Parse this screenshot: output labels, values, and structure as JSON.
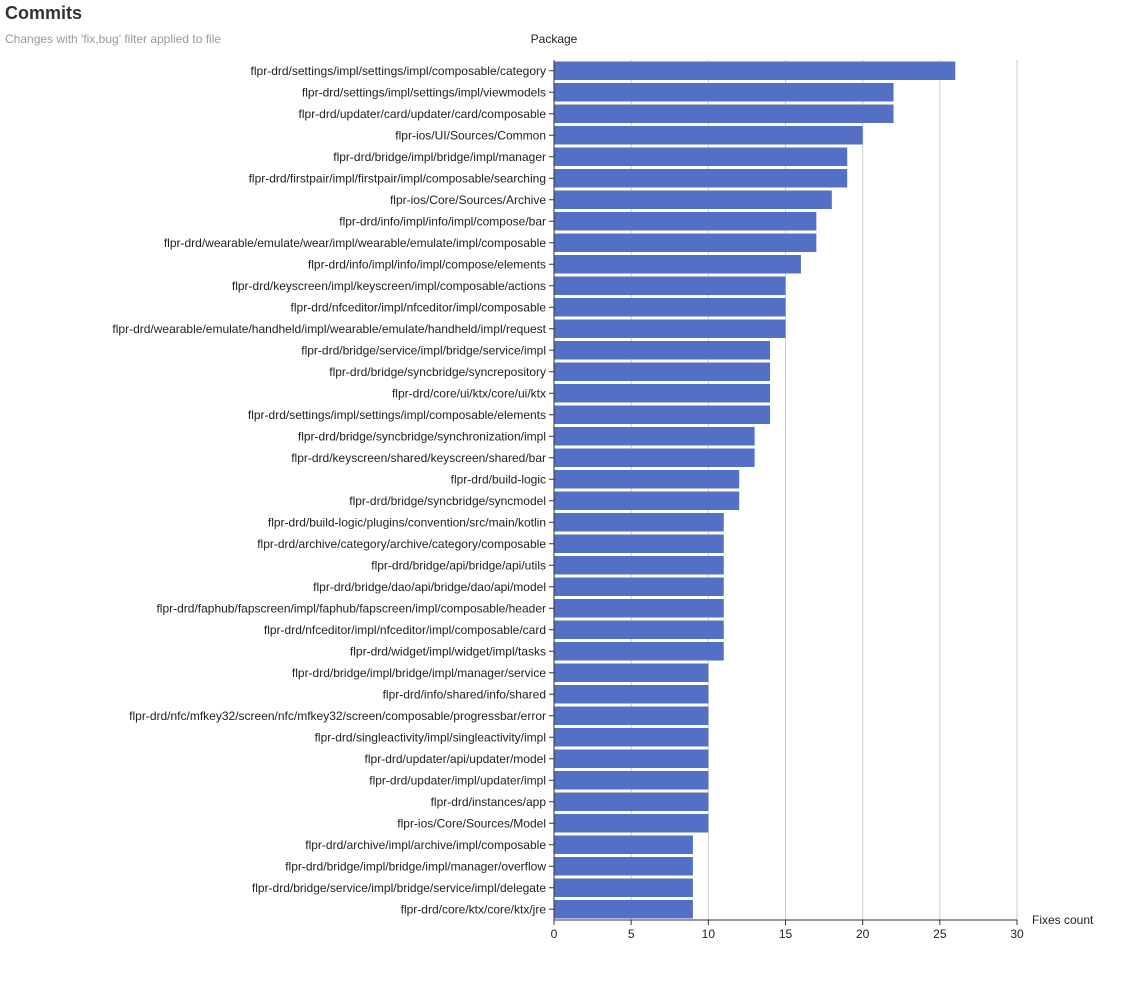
{
  "header": {
    "title": "Commits",
    "subtitle": "Changes with 'fix,bug' filter applied to file"
  },
  "colors": {
    "bar": "#5470c6",
    "grid": "#cccccc",
    "axis": "#333333",
    "text": "#222222"
  },
  "chart_data": {
    "type": "bar",
    "orientation": "horizontal",
    "title": "Commits",
    "subtitle": "Changes with 'fix,bug' filter applied to file",
    "ylabel": "Package",
    "xlabel": "Fixes count",
    "xlim": [
      0,
      30
    ],
    "xticks": [
      0,
      5,
      10,
      15,
      20,
      25,
      30
    ],
    "grid": true,
    "legend": "none",
    "categories": [
      "flpr-drd/settings/impl/settings/impl/composable/category",
      "flpr-drd/settings/impl/settings/impl/viewmodels",
      "flpr-drd/updater/card/updater/card/composable",
      "flpr-ios/UI/Sources/Common",
      "flpr-drd/bridge/impl/bridge/impl/manager",
      "flpr-drd/firstpair/impl/firstpair/impl/composable/searching",
      "flpr-ios/Core/Sources/Archive",
      "flpr-drd/info/impl/info/impl/compose/bar",
      "flpr-drd/wearable/emulate/wear/impl/wearable/emulate/impl/composable",
      "flpr-drd/info/impl/info/impl/compose/elements",
      "flpr-drd/keyscreen/impl/keyscreen/impl/composable/actions",
      "flpr-drd/nfceditor/impl/nfceditor/impl/composable",
      "flpr-drd/wearable/emulate/handheld/impl/wearable/emulate/handheld/impl/request",
      "flpr-drd/bridge/service/impl/bridge/service/impl",
      "flpr-drd/bridge/syncbridge/syncrepository",
      "flpr-drd/core/ui/ktx/core/ui/ktx",
      "flpr-drd/settings/impl/settings/impl/composable/elements",
      "flpr-drd/bridge/syncbridge/synchronization/impl",
      "flpr-drd/keyscreen/shared/keyscreen/shared/bar",
      "flpr-drd/build-logic",
      "flpr-drd/bridge/syncbridge/syncmodel",
      "flpr-drd/build-logic/plugins/convention/src/main/kotlin",
      "flpr-drd/archive/category/archive/category/composable",
      "flpr-drd/bridge/api/bridge/api/utils",
      "flpr-drd/bridge/dao/api/bridge/dao/api/model",
      "flpr-drd/faphub/fapscreen/impl/faphub/fapscreen/impl/composable/header",
      "flpr-drd/nfceditor/impl/nfceditor/impl/composable/card",
      "flpr-drd/widget/impl/widget/impl/tasks",
      "flpr-drd/bridge/impl/bridge/impl/manager/service",
      "flpr-drd/info/shared/info/shared",
      "flpr-drd/nfc/mfkey32/screen/nfc/mfkey32/screen/composable/progressbar/error",
      "flpr-drd/singleactivity/impl/singleactivity/impl",
      "flpr-drd/updater/api/updater/model",
      "flpr-drd/updater/impl/updater/impl",
      "flpr-drd/instances/app",
      "flpr-ios/Core/Sources/Model",
      "flpr-drd/archive/impl/archive/impl/composable",
      "flpr-drd/bridge/impl/bridge/impl/manager/overflow",
      "flpr-drd/bridge/service/impl/bridge/service/impl/delegate",
      "flpr-drd/core/ktx/core/ktx/jre"
    ],
    "values": [
      26,
      22,
      22,
      20,
      19,
      19,
      18,
      17,
      17,
      16,
      15,
      15,
      15,
      14,
      14,
      14,
      14,
      13,
      13,
      12,
      12,
      11,
      11,
      11,
      11,
      11,
      11,
      11,
      10,
      10,
      10,
      10,
      10,
      10,
      10,
      10,
      9,
      9,
      9,
      9
    ]
  }
}
